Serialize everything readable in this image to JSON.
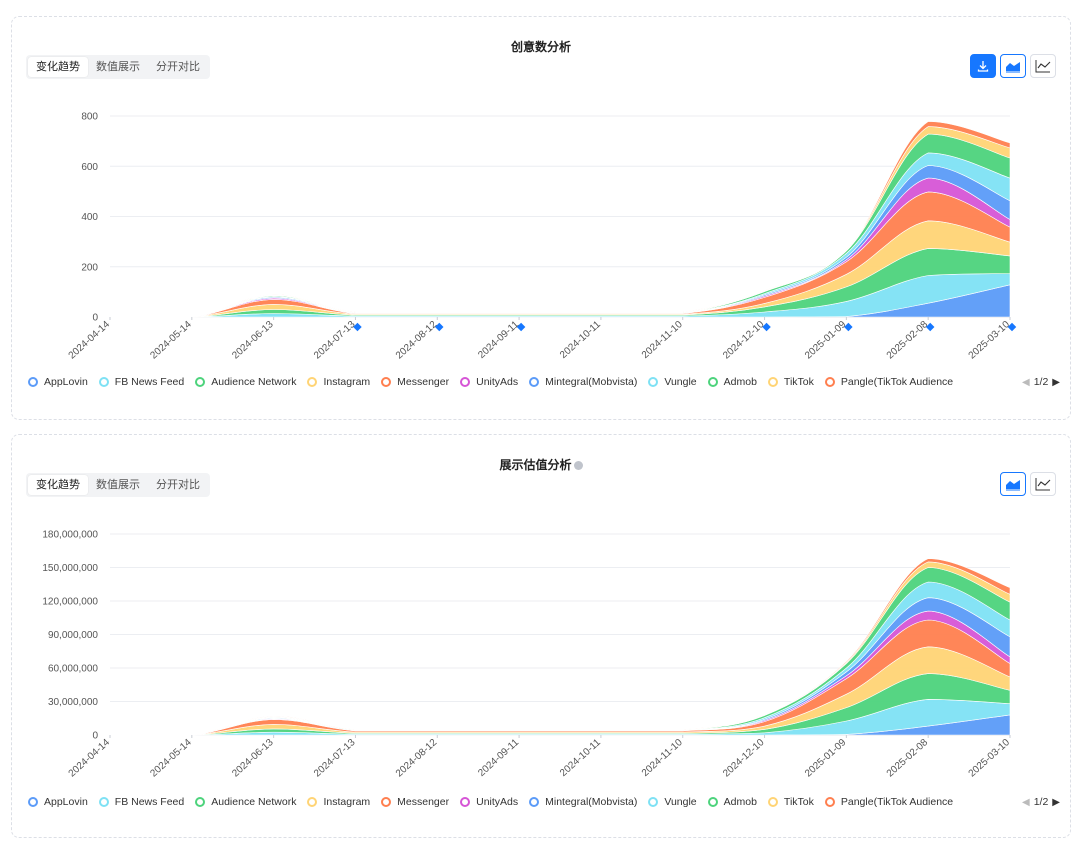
{
  "colors": {
    "AppLovin": "#5b9bf8",
    "FB News Feed": "#7ee1f4",
    "Audience Network": "#4dd37c",
    "Instagram": "#ffd475",
    "Messenger": "#ff7f4f",
    "UnityAds": "#d655d6",
    "Mintegral(Mobvista)": "#5b9bf8",
    "Vungle": "#7ee1f4",
    "Admob": "#4dd37c",
    "TikTok": "#ffd475",
    "Pangle(TikTok Audience": "#ff7f4f",
    "accent": "#1677ff",
    "marker": "#1677ff"
  },
  "segment_tabs": [
    "变化趋势",
    "数值展示",
    "分开对比"
  ],
  "legend_page": "1/2",
  "icons": {
    "download": "download-icon",
    "area": "area-chart-icon",
    "line": "line-chart-icon",
    "info": "info-icon",
    "prev": "caret-left-icon",
    "next": "caret-right-icon"
  },
  "chart_data": [
    {
      "type": "area",
      "stacked": true,
      "title": "创意数分析",
      "x": [
        "2024-04-14",
        "2024-05-14",
        "2024-06-13",
        "2024-07-13",
        "2024-08-12",
        "2024-09-11",
        "2024-10-11",
        "2024-11-10",
        "2024-12-10",
        "2025-01-09",
        "2025-02-08",
        "2025-03-10"
      ],
      "ylim": [
        0,
        800
      ],
      "yticks": [
        0,
        200,
        400,
        600,
        800
      ],
      "grid": true,
      "legend_position": "bottom",
      "markers_at": [
        "2024-07-13",
        "2024-08-12",
        "2024-09-11",
        "2024-12-10",
        "2025-01-09",
        "2025-02-08",
        "2025-03-10"
      ],
      "series": [
        {
          "name": "AppLovin",
          "values": [
            0,
            0,
            0,
            0,
            0,
            0,
            0,
            0,
            0,
            2,
            55,
            128
          ]
        },
        {
          "name": "FB News Feed",
          "values": [
            0,
            0,
            14,
            4,
            4,
            4,
            4,
            4,
            20,
            60,
            110,
            45
          ]
        },
        {
          "name": "Audience Network",
          "values": [
            0,
            0,
            16,
            4,
            4,
            4,
            4,
            4,
            20,
            58,
            108,
            70
          ]
        },
        {
          "name": "Instagram",
          "values": [
            0,
            0,
            20,
            3,
            3,
            3,
            3,
            3,
            14,
            50,
            110,
            55
          ]
        },
        {
          "name": "Messenger",
          "values": [
            0,
            0,
            20,
            3,
            3,
            3,
            3,
            3,
            24,
            50,
            115,
            60
          ]
        },
        {
          "name": "UnityAds",
          "values": [
            0,
            0,
            5,
            1,
            1,
            1,
            1,
            1,
            5,
            8,
            55,
            30
          ]
        },
        {
          "name": "Mintegral(Mobvista)",
          "values": [
            0,
            0,
            4,
            1,
            1,
            1,
            1,
            1,
            5,
            10,
            50,
            75
          ]
        },
        {
          "name": "Vungle",
          "values": [
            0,
            0,
            3,
            1,
            1,
            1,
            1,
            1,
            5,
            15,
            50,
            90
          ]
        },
        {
          "name": "Admob",
          "values": [
            0,
            0,
            3,
            1,
            1,
            1,
            1,
            1,
            8,
            10,
            75,
            80
          ]
        },
        {
          "name": "TikTok",
          "values": [
            0,
            0,
            3,
            1,
            1,
            1,
            1,
            1,
            2,
            2,
            30,
            40
          ]
        },
        {
          "name": "Pangle(TikTok Audience",
          "values": [
            0,
            0,
            2,
            1,
            1,
            1,
            1,
            1,
            2,
            2,
            20,
            20
          ]
        }
      ]
    },
    {
      "type": "area",
      "stacked": true,
      "title": "展示估值分析",
      "x": [
        "2024-04-14",
        "2024-05-14",
        "2024-06-13",
        "2024-07-13",
        "2024-08-12",
        "2024-09-11",
        "2024-10-11",
        "2024-11-10",
        "2024-12-10",
        "2025-01-09",
        "2025-02-08",
        "2025-03-10"
      ],
      "ylim": [
        0,
        180000000
      ],
      "yticks": [
        0,
        30000000,
        60000000,
        90000000,
        120000000,
        150000000,
        180000000
      ],
      "ytick_labels": [
        "0",
        "30,000,000",
        "60,000,000",
        "90,000,000",
        "120,000,000",
        "150,000,000",
        "180,000,000"
      ],
      "grid": true,
      "legend_position": "bottom",
      "series": [
        {
          "name": "AppLovin",
          "values": [
            0,
            0,
            0,
            0,
            0,
            0,
            0,
            0,
            0,
            500000,
            8000000,
            18000000
          ]
        },
        {
          "name": "FB News Feed",
          "values": [
            0,
            0,
            2500000,
            800000,
            800000,
            800000,
            800000,
            800000,
            2000000,
            12000000,
            24000000,
            10000000
          ]
        },
        {
          "name": "Audience Network",
          "values": [
            0,
            0,
            3000000,
            800000,
            800000,
            800000,
            800000,
            800000,
            3000000,
            12000000,
            23000000,
            12000000
          ]
        },
        {
          "name": "Instagram",
          "values": [
            0,
            0,
            4000000,
            1000000,
            1000000,
            1000000,
            1000000,
            1000000,
            3000000,
            12000000,
            24000000,
            12000000
          ]
        },
        {
          "name": "Messenger",
          "values": [
            0,
            0,
            4500000,
            1200000,
            1200000,
            1200000,
            1200000,
            1200000,
            4000000,
            14000000,
            24000000,
            12000000
          ]
        },
        {
          "name": "UnityAds",
          "values": [
            0,
            0,
            600000,
            200000,
            200000,
            200000,
            200000,
            200000,
            1000000,
            2500000,
            8000000,
            6000000
          ]
        },
        {
          "name": "Mintegral(Mobvista)",
          "values": [
            0,
            0,
            600000,
            200000,
            200000,
            200000,
            200000,
            200000,
            1000000,
            3500000,
            12000000,
            18000000
          ]
        },
        {
          "name": "Vungle",
          "values": [
            0,
            0,
            500000,
            200000,
            200000,
            200000,
            200000,
            200000,
            1500000,
            3500000,
            14000000,
            15000000
          ]
        },
        {
          "name": "Admob",
          "values": [
            0,
            0,
            500000,
            200000,
            200000,
            200000,
            200000,
            200000,
            2000000,
            4000000,
            13000000,
            16000000
          ]
        },
        {
          "name": "TikTok",
          "values": [
            0,
            0,
            400000,
            100000,
            100000,
            100000,
            100000,
            100000,
            500000,
            1000000,
            5000000,
            7000000
          ]
        },
        {
          "name": "Pangle(TikTok Audience",
          "values": [
            0,
            0,
            400000,
            100000,
            100000,
            100000,
            100000,
            100000,
            500000,
            1000000,
            3000000,
            6000000
          ]
        }
      ]
    }
  ]
}
